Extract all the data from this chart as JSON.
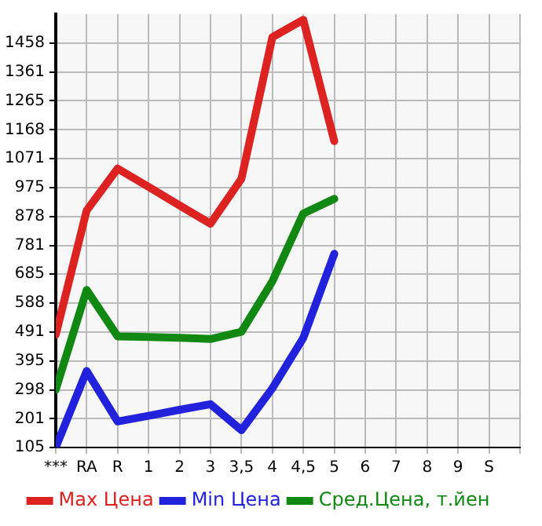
{
  "chart_data": {
    "type": "line",
    "categories": [
      "***",
      "RA",
      "R",
      "1",
      "2",
      "3",
      "3,5",
      "4",
      "4,5",
      "5",
      "6",
      "7",
      "8",
      "9",
      "S"
    ],
    "ylim": [
      105,
      1555
    ],
    "yticks": [
      105,
      201,
      298,
      395,
      491,
      588,
      685,
      781,
      878,
      975,
      1071,
      1168,
      1265,
      1361,
      1458
    ],
    "grid": true,
    "legend": "bottom",
    "marker": "none",
    "line_style": "solid",
    "series": [
      {
        "name": "Max Цена",
        "color": "#dd2222",
        "values": [
          482,
          898,
          1038,
          977,
          915,
          854,
          1004,
          1478,
          1536,
          1130,
          null,
          null,
          null,
          null,
          null
        ]
      },
      {
        "name": "Min Цена",
        "color": "#2222dd",
        "values": [
          105,
          361,
          192,
          211,
          231,
          250,
          163,
          303,
          472,
          753,
          null,
          null,
          null,
          null,
          null
        ]
      },
      {
        "name": "Сред.Цена, т.йен",
        "color": "#118811",
        "values": [
          298,
          632,
          477,
          475,
          472,
          468,
          492,
          661,
          888,
          937,
          null,
          null,
          null,
          null,
          null
        ]
      }
    ]
  }
}
